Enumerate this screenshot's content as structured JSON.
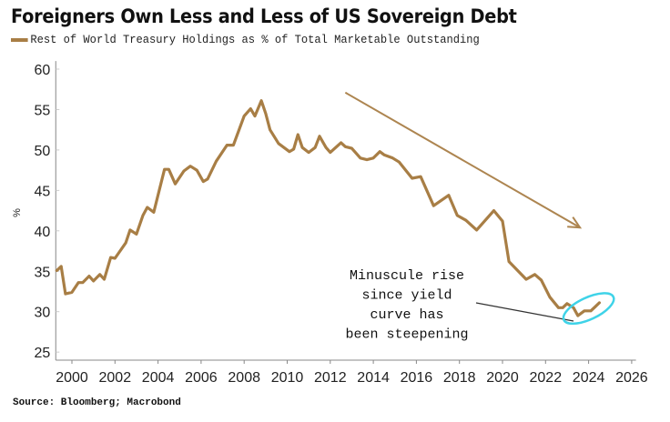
{
  "colors": {
    "series": "#a87e45",
    "arrow": "#ad8550",
    "highlight": "#3fd3e8",
    "axis": "#888888",
    "pointer": "#333333"
  },
  "chart_data": {
    "type": "line",
    "title": "Foreigners Own Less and Less of US Sovereign Debt",
    "ylabel": "%",
    "xlim": [
      1999.25,
      2026.2
    ],
    "ylim": [
      24,
      61
    ],
    "x_ticks": [
      "2000",
      "2002",
      "2004",
      "2006",
      "2008",
      "2010",
      "2012",
      "2014",
      "2016",
      "2018",
      "2020",
      "2022",
      "2024",
      "2026"
    ],
    "y_ticks": [
      "25",
      "30",
      "35",
      "40",
      "45",
      "50",
      "55",
      "60"
    ],
    "grid": false,
    "legend_placement": "top-left",
    "series": [
      {
        "name": "Rest of World Treasury Holdings as % of Total Marketable Outstanding",
        "x": [
          1999.3,
          1999.5,
          1999.7,
          2000.0,
          2000.3,
          2000.5,
          2000.8,
          2001.0,
          2001.3,
          2001.5,
          2001.8,
          2002.0,
          2002.5,
          2002.7,
          2003.0,
          2003.3,
          2003.5,
          2003.8,
          2004.3,
          2004.5,
          2004.8,
          2005.2,
          2005.5,
          2005.8,
          2006.1,
          2006.3,
          2006.7,
          2007.2,
          2007.5,
          2008.0,
          2008.3,
          2008.5,
          2008.8,
          2009.0,
          2009.2,
          2009.6,
          2010.1,
          2010.3,
          2010.5,
          2010.7,
          2011.0,
          2011.3,
          2011.5,
          2011.8,
          2012.0,
          2012.5,
          2012.7,
          2013.0,
          2013.4,
          2013.7,
          2014.0,
          2014.3,
          2014.5,
          2014.9,
          2015.2,
          2015.8,
          2016.2,
          2016.8,
          2017.5,
          2017.9,
          2018.3,
          2018.8,
          2019.6,
          2020.0,
          2020.3,
          2021.1,
          2021.5,
          2021.8,
          2022.2,
          2022.6,
          2022.8,
          2023.0,
          2023.3,
          2023.5,
          2023.8,
          2024.1,
          2024.3,
          2024.5
        ],
        "values": [
          35.1,
          35.6,
          32.2,
          32.4,
          33.6,
          33.6,
          34.4,
          33.8,
          34.6,
          34.0,
          36.7,
          36.6,
          38.5,
          40.1,
          39.6,
          41.9,
          42.9,
          42.3,
          47.6,
          47.6,
          45.8,
          47.4,
          48.0,
          47.5,
          46.1,
          46.4,
          48.6,
          50.6,
          50.6,
          54.2,
          55.1,
          54.2,
          56.1,
          54.5,
          52.5,
          50.8,
          49.8,
          50.1,
          51.9,
          50.3,
          49.7,
          50.3,
          51.7,
          50.3,
          49.7,
          50.9,
          50.4,
          50.2,
          49.0,
          48.8,
          49.0,
          49.8,
          49.4,
          49.0,
          48.5,
          46.5,
          46.7,
          43.1,
          44.4,
          41.9,
          41.3,
          40.1,
          42.5,
          41.2,
          36.2,
          34.0,
          34.6,
          33.9,
          31.8,
          30.5,
          30.5,
          31.0,
          30.5,
          29.5,
          30.1,
          30.1,
          30.6,
          31.1
        ]
      }
    ],
    "annotations": [
      {
        "type": "arrow",
        "from": [
          2012.7,
          57.1
        ],
        "to": [
          2023.6,
          40.4
        ]
      },
      {
        "type": "text",
        "lines": [
          "Minuscule rise",
          "since yield",
          "curve has",
          "been steepening"
        ]
      },
      {
        "type": "ellipse",
        "center": [
          2024.0,
          30.4
        ]
      }
    ]
  },
  "source": "Source: Bloomberg; Macrobond"
}
